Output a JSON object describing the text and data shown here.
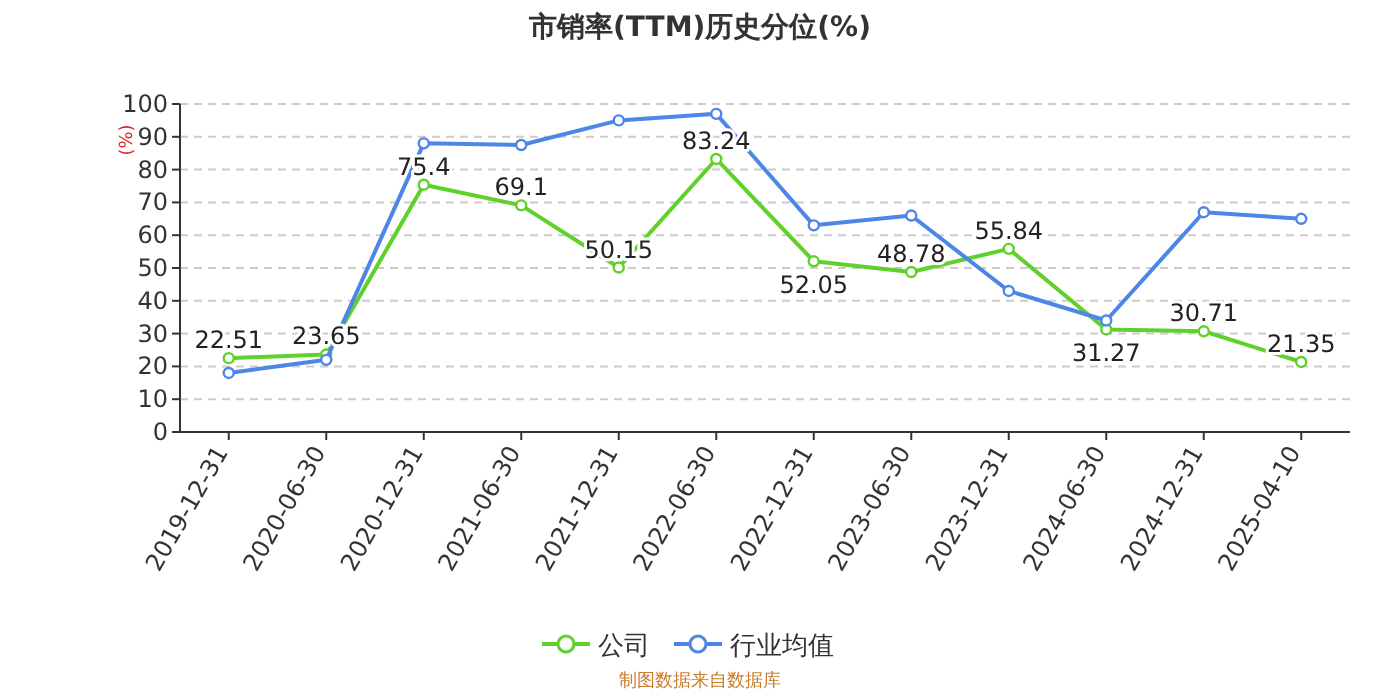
{
  "chart_data": {
    "type": "line",
    "title": "市销率(TTM)历史分位(%)",
    "ylabel": "(%)",
    "categories": [
      "2019-12-31",
      "2020-06-30",
      "2020-12-31",
      "2021-06-30",
      "2021-12-31",
      "2022-06-30",
      "2022-12-31",
      "2023-06-30",
      "2023-12-31",
      "2024-06-30",
      "2024-12-31",
      "2025-04-10"
    ],
    "series": [
      {
        "name": "公司",
        "color": "#5fd12b",
        "values": [
          22.51,
          23.65,
          75.4,
          69.1,
          50.15,
          83.24,
          52.05,
          48.78,
          55.84,
          31.27,
          30.71,
          21.35
        ],
        "value_labels": [
          "22.51",
          "23.65",
          "75.4",
          "69.1",
          "50.15",
          "83.24",
          "52.05",
          "48.78",
          "55.84",
          "31.27",
          "30.71",
          "21.35"
        ]
      },
      {
        "name": "行业均值",
        "color": "#4e86e8",
        "values": [
          18,
          22,
          88,
          87.5,
          95,
          97,
          63,
          66,
          43,
          34,
          67,
          65
        ]
      }
    ],
    "ylim": [
      0,
      100
    ],
    "yticks": [
      0,
      10,
      20,
      30,
      40,
      50,
      60,
      70,
      80,
      90,
      100
    ],
    "grid": "y",
    "legend": "bottom",
    "marker": "circle",
    "line_style": "solid",
    "annotations": [
      "制图数据来自数据库"
    ]
  }
}
